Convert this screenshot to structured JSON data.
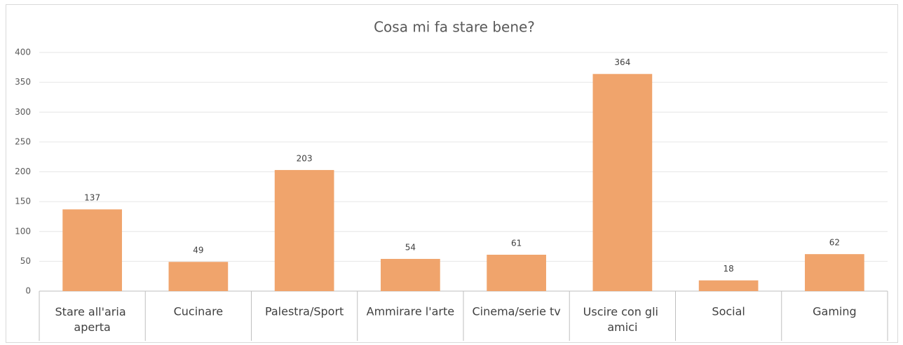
{
  "chart_data": {
    "type": "bar",
    "title": "Cosa mi fa stare bene?",
    "categories": [
      "Stare all'aria aperta",
      "Cucinare",
      "Palestra/Sport",
      "Ammirare l'arte",
      "Cinema/serie tv",
      "Uscire con gli amici",
      "Social",
      "Gaming"
    ],
    "values": [
      137,
      49,
      203,
      54,
      61,
      364,
      18,
      62
    ],
    "color": "#f0a46c",
    "ylim": [
      0,
      400
    ],
    "yticks": [
      0,
      50,
      100,
      150,
      200,
      250,
      300,
      350,
      400
    ],
    "grid": true
  }
}
